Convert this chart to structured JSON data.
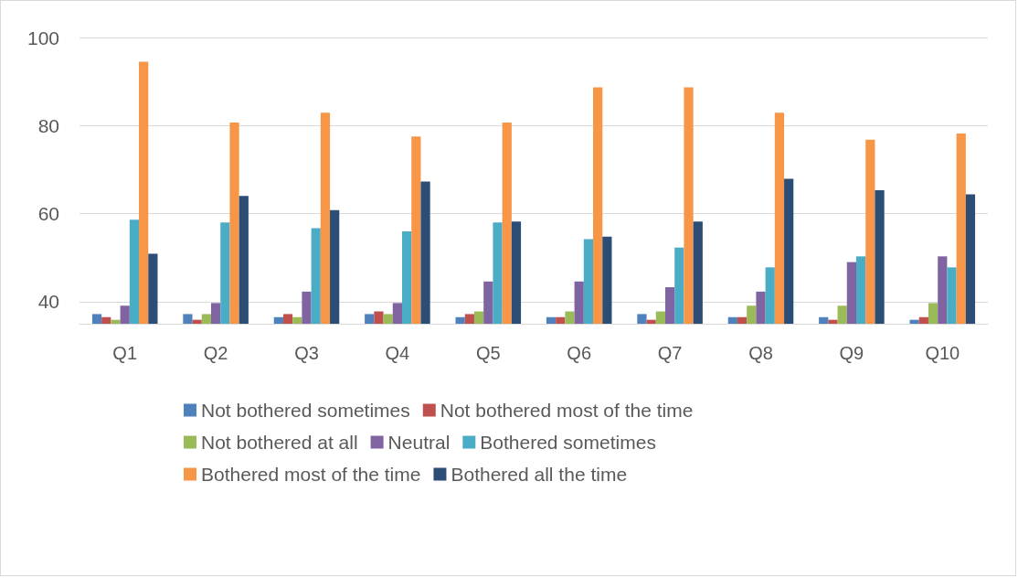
{
  "chart_data": {
    "type": "bar",
    "categories": [
      "Q1",
      "Q2",
      "Q3",
      "Q4",
      "Q5",
      "Q6",
      "Q7",
      "Q8",
      "Q9",
      "Q10"
    ],
    "series": [
      {
        "name": "Not bothered sometimes",
        "color": "#4f81bd",
        "values": [
          37.2,
          37.2,
          36.5,
          37.2,
          36.5,
          36.5,
          37.2,
          36.5,
          36.5,
          35.9
        ]
      },
      {
        "name": "Not bothered most of the time",
        "color": "#c0504d",
        "values": [
          36.5,
          35.9,
          37.2,
          37.8,
          37.2,
          36.5,
          35.9,
          36.5,
          35.9,
          36.5
        ]
      },
      {
        "name": "Not bothered at all",
        "color": "#9bbb59",
        "values": [
          35.9,
          37.2,
          36.5,
          37.2,
          37.8,
          37.8,
          37.8,
          39.1,
          39.1,
          39.7
        ]
      },
      {
        "name": "Neutral",
        "color": "#8064a2",
        "values": [
          39.1,
          39.7,
          42.3,
          39.7,
          44.6,
          44.6,
          43.3,
          42.3,
          49.0,
          50.3
        ]
      },
      {
        "name": "Bothered sometimes",
        "color": "#4bacc6",
        "values": [
          58.6,
          58.0,
          56.7,
          56.0,
          58.0,
          54.2,
          52.3,
          47.8,
          50.3,
          47.8
        ]
      },
      {
        "name": "Bothered most of the time",
        "color": "#f79646",
        "values": [
          94.5,
          80.7,
          82.9,
          77.5,
          80.7,
          88.7,
          88.7,
          82.9,
          76.8,
          78.2
        ]
      },
      {
        "name": "Bothered all the time",
        "color": "#2c4d75",
        "values": [
          50.9,
          64.0,
          60.8,
          67.3,
          58.2,
          54.8,
          58.2,
          67.9,
          65.3,
          64.4
        ]
      }
    ],
    "ylim": [
      35,
      100
    ],
    "yticks": [
      40,
      60,
      80,
      100
    ],
    "grid": "y",
    "legend": "bottom"
  }
}
